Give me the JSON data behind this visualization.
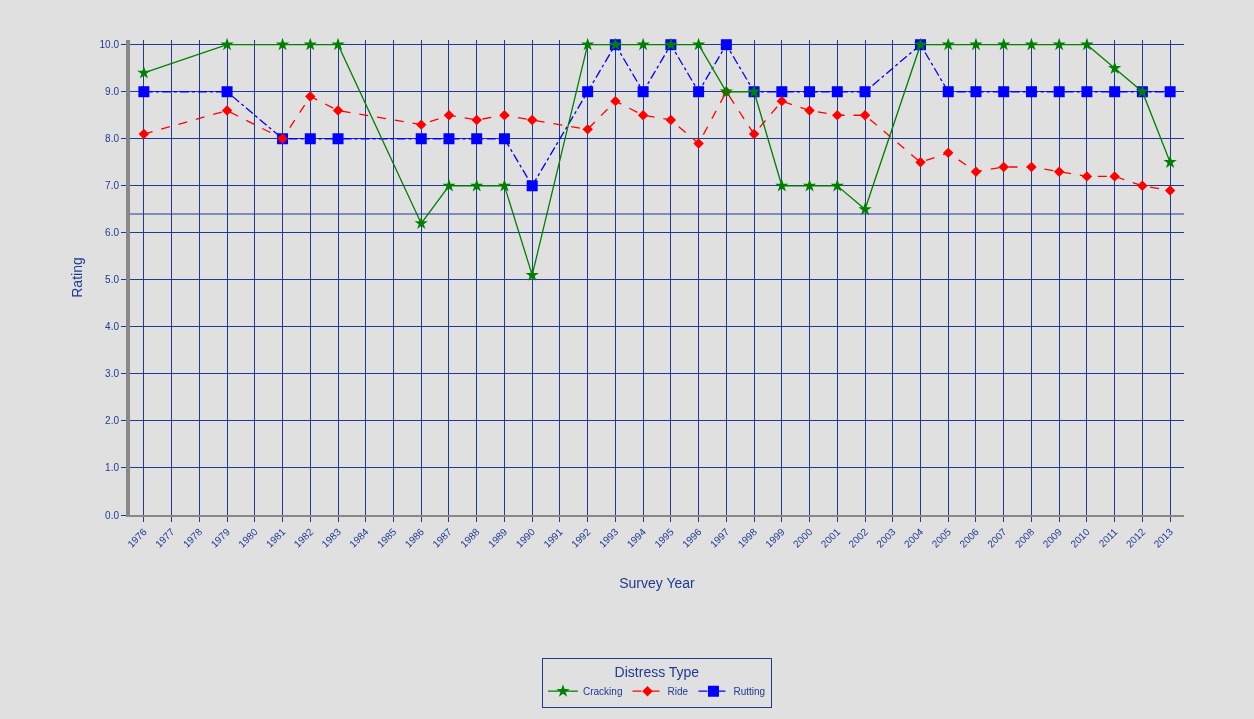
{
  "chart_data": {
    "type": "line",
    "xlabel": "Survey Year",
    "ylabel": "Rating",
    "legend_title": "Distress Type",
    "legend": "bottom",
    "grid": true,
    "x": [
      1976,
      1979,
      1981,
      1982,
      1983,
      1986,
      1987,
      1988,
      1989,
      1990,
      1992,
      1993,
      1994,
      1995,
      1996,
      1997,
      1998,
      1999,
      2000,
      2001,
      2002,
      2004,
      2005,
      2006,
      2007,
      2008,
      2009,
      2010,
      2011,
      2012,
      2013
    ],
    "series": [
      {
        "name": "Cracking",
        "color": "#008000",
        "marker": "star",
        "line_style": "solid",
        "values": [
          9.4,
          10,
          10,
          10,
          10,
          6.2,
          7,
          7,
          7,
          5.1,
          10,
          10,
          10,
          10,
          10,
          9,
          9,
          7,
          7,
          7,
          6.5,
          10,
          10,
          10,
          10,
          10,
          10,
          10,
          9.5,
          9,
          7.5
        ]
      },
      {
        "name": "Ride",
        "color": "#ff0000",
        "marker": "diamond",
        "line_style": "dashed",
        "values": [
          8.1,
          8.6,
          8.0,
          8.9,
          8.6,
          8.3,
          8.5,
          8.4,
          8.5,
          8.4,
          8.2,
          8.8,
          8.5,
          8.4,
          7.9,
          9.0,
          8.1,
          8.8,
          8.6,
          8.5,
          8.5,
          7.5,
          7.7,
          7.3,
          7.4,
          7.4,
          7.3,
          7.2,
          7.2,
          7.0,
          6.9
        ]
      },
      {
        "name": "Rutting",
        "color": "#0000ff",
        "marker": "square",
        "line_style": "dashdot",
        "values": [
          9,
          9,
          8,
          8,
          8,
          8,
          8,
          8,
          8,
          7,
          9,
          10,
          9,
          10,
          9,
          10,
          9,
          9,
          9,
          9,
          9,
          10,
          9,
          9,
          9,
          9,
          9,
          9,
          9,
          9,
          9
        ]
      }
    ],
    "xlim": [
      1975.5,
      2013.5
    ],
    "xticks": [
      1976,
      1977,
      1978,
      1979,
      1980,
      1981,
      1982,
      1983,
      1984,
      1985,
      1986,
      1987,
      1988,
      1989,
      1990,
      1991,
      1992,
      1993,
      1994,
      1995,
      1996,
      1997,
      1998,
      1999,
      2000,
      2001,
      2002,
      2003,
      2004,
      2005,
      2006,
      2007,
      2008,
      2009,
      2010,
      2011,
      2012,
      2013
    ],
    "ylim": [
      0,
      10.1
    ],
    "yticks": [
      {
        "value": 0,
        "label": "0.0"
      },
      {
        "value": 1,
        "label": "1.0"
      },
      {
        "value": 2,
        "label": "2.0"
      },
      {
        "value": 3,
        "label": "3.0"
      },
      {
        "value": 4,
        "label": "4.0"
      },
      {
        "value": 5,
        "label": "5.0"
      },
      {
        "value": 6,
        "label": "6.0"
      },
      {
        "value": 7,
        "label": "7.0"
      },
      {
        "value": 8,
        "label": "8.0"
      },
      {
        "value": 9,
        "label": "9.0"
      },
      {
        "value": 10,
        "label": "10.0"
      }
    ],
    "ref_lines": [
      {
        "axis": "y",
        "value": 6.4,
        "color": "#1f3a93"
      }
    ]
  }
}
